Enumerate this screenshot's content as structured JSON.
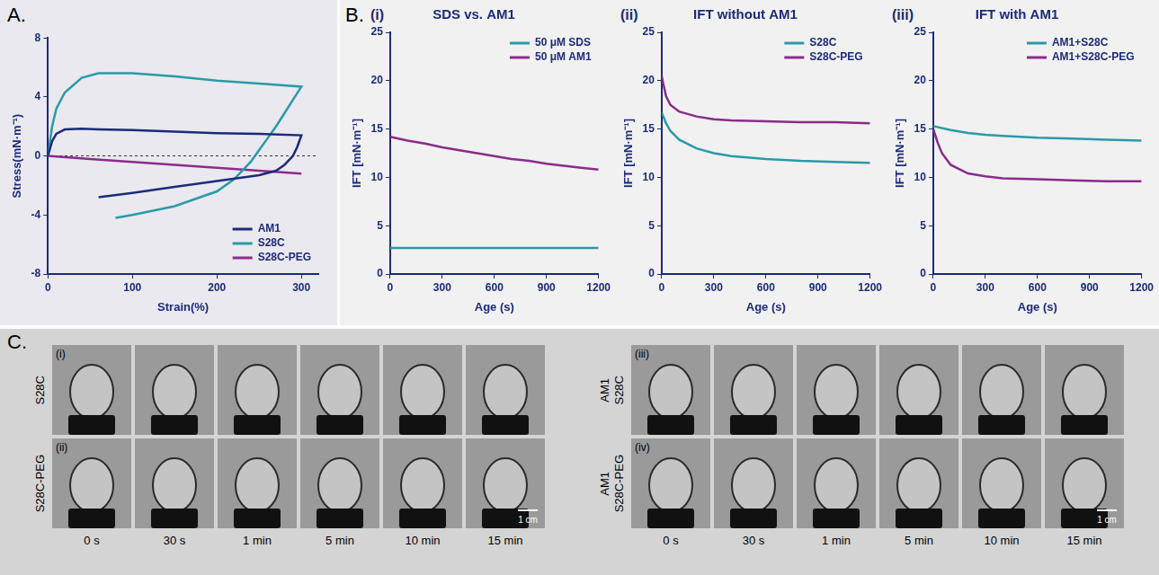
{
  "panel_letters": [
    "A.",
    "B.",
    "C."
  ],
  "chart_data": [
    {
      "panel": "A",
      "type": "line",
      "x_label": "Strain(%)",
      "y_label": "Stress(mN·m⁻¹)",
      "xlim": [
        0,
        320
      ],
      "xticks": [
        0,
        100,
        200,
        300
      ],
      "ylim": [
        -8,
        8
      ],
      "yticks": [
        -8,
        -4,
        0,
        4,
        8
      ],
      "grid": false,
      "legend": "bottom-right",
      "series": [
        {
          "name": "AM1",
          "color": "#1c2a7a",
          "x": [
            0,
            5,
            10,
            20,
            40,
            60,
            100,
            150,
            200,
            250,
            300,
            300,
            295,
            290,
            280,
            270,
            250,
            200,
            150,
            100,
            60
          ],
          "values": [
            0,
            1.0,
            1.5,
            1.8,
            1.85,
            1.8,
            1.75,
            1.65,
            1.55,
            1.5,
            1.4,
            1.4,
            0.6,
            0,
            -0.6,
            -1.0,
            -1.3,
            -1.7,
            -2.1,
            -2.5,
            -2.8
          ]
        },
        {
          "name": "S28C",
          "color": "#2a9aa8",
          "x": [
            0,
            5,
            10,
            20,
            40,
            60,
            100,
            150,
            200,
            250,
            300,
            300,
            290,
            280,
            270,
            260,
            250,
            240,
            220,
            200,
            150,
            100,
            80
          ],
          "values": [
            0,
            2.0,
            3.2,
            4.3,
            5.3,
            5.6,
            5.6,
            5.4,
            5.1,
            4.9,
            4.7,
            4.7,
            3.8,
            2.9,
            2.0,
            1.2,
            0.4,
            -0.4,
            -1.6,
            -2.4,
            -3.4,
            -4.0,
            -4.2
          ]
        },
        {
          "name": "S28C-PEG",
          "color": "#8b2b8c",
          "x": [
            0,
            50,
            100,
            150,
            200,
            250,
            300
          ],
          "values": [
            0,
            -0.2,
            -0.4,
            -0.6,
            -0.8,
            -1.0,
            -1.2
          ]
        }
      ]
    },
    {
      "panel": "B",
      "sub_label": "(i)",
      "title": "SDS vs. AM1",
      "type": "line",
      "x_label": "Age (s)",
      "y_label": "IFT [mN·m⁻¹]",
      "xlim": [
        0,
        1200
      ],
      "xticks": [
        0,
        300,
        600,
        900,
        1200
      ],
      "ylim": [
        0,
        25
      ],
      "yticks": [
        0,
        5,
        10,
        15,
        20,
        25
      ],
      "grid": false,
      "legend": "top-right",
      "series": [
        {
          "name": "50 μM SDS",
          "color": "#2a9aa8",
          "x": [
            0,
            300,
            600,
            900,
            1200
          ],
          "values": [
            2.7,
            2.7,
            2.7,
            2.7,
            2.7
          ]
        },
        {
          "name": "50 μM AM1",
          "color": "#8b2b8c",
          "x": [
            0,
            100,
            200,
            300,
            400,
            500,
            600,
            700,
            800,
            900,
            1000,
            1100,
            1200
          ],
          "values": [
            14.2,
            13.8,
            13.5,
            13.1,
            12.8,
            12.5,
            12.2,
            11.9,
            11.7,
            11.4,
            11.2,
            11.0,
            10.8
          ]
        }
      ]
    },
    {
      "panel": "B",
      "sub_label": "(ii)",
      "title": "IFT without AM1",
      "type": "line",
      "x_label": "Age (s)",
      "y_label": "IFT [mN·m⁻¹]",
      "xlim": [
        0,
        1200
      ],
      "xticks": [
        0,
        300,
        600,
        900,
        1200
      ],
      "ylim": [
        0,
        25
      ],
      "yticks": [
        0,
        5,
        10,
        15,
        20,
        25
      ],
      "grid": false,
      "legend": "top-right",
      "series": [
        {
          "name": "S28C",
          "color": "#2a9aa8",
          "x": [
            0,
            25,
            50,
            100,
            200,
            300,
            400,
            600,
            800,
            1000,
            1200
          ],
          "values": [
            16.7,
            15.6,
            14.8,
            13.9,
            13.0,
            12.5,
            12.2,
            11.9,
            11.7,
            11.6,
            11.5
          ]
        },
        {
          "name": "S28C-PEG",
          "color": "#8b2b8c",
          "x": [
            0,
            10,
            25,
            50,
            100,
            200,
            300,
            400,
            600,
            800,
            1000,
            1200
          ],
          "values": [
            20.5,
            19.6,
            18.4,
            17.5,
            16.8,
            16.3,
            16.0,
            15.9,
            15.8,
            15.7,
            15.7,
            15.6
          ]
        }
      ]
    },
    {
      "panel": "B",
      "sub_label": "(iii)",
      "title": "IFT with AM1",
      "type": "line",
      "x_label": "Age (s)",
      "y_label": "IFT [mN·m⁻¹]",
      "xlim": [
        0,
        1200
      ],
      "xticks": [
        0,
        300,
        600,
        900,
        1200
      ],
      "ylim": [
        0,
        25
      ],
      "yticks": [
        0,
        5,
        10,
        15,
        20,
        25
      ],
      "grid": false,
      "legend": "top-right",
      "series": [
        {
          "name": "AM1+S28C",
          "color": "#2a9aa8",
          "x": [
            0,
            100,
            200,
            300,
            400,
            600,
            800,
            1000,
            1200
          ],
          "values": [
            15.3,
            14.9,
            14.6,
            14.4,
            14.3,
            14.1,
            14.0,
            13.9,
            13.8
          ]
        },
        {
          "name": "AM1+S28C-PEG",
          "color": "#8b2b8c",
          "x": [
            0,
            25,
            50,
            100,
            200,
            300,
            400,
            600,
            800,
            1000,
            1200
          ],
          "values": [
            15.0,
            13.6,
            12.5,
            11.3,
            10.4,
            10.1,
            9.9,
            9.8,
            9.7,
            9.6,
            9.6
          ]
        }
      ]
    }
  ],
  "photos": {
    "groups": [
      {
        "rows": [
          {
            "label": "(i)",
            "name": [
              "S28C"
            ]
          },
          {
            "label": "(ii)",
            "name": [
              "S28C-PEG"
            ]
          }
        ]
      },
      {
        "rows": [
          {
            "label": "(iii)",
            "name": [
              "AM1",
              "S28C"
            ]
          },
          {
            "label": "(iv)",
            "name": [
              "AM1",
              "S28C-PEG"
            ]
          }
        ]
      }
    ],
    "times": [
      "0 s",
      "30 s",
      "1 min",
      "5 min",
      "10 min",
      "15 min"
    ],
    "scale_bar": "1 cm"
  }
}
